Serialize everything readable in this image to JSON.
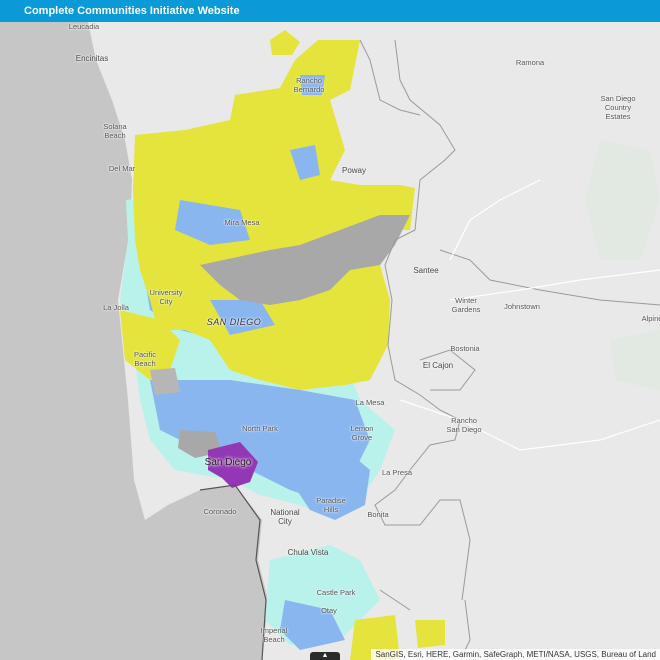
{
  "header": {
    "title": "Complete Communities Initiative Website"
  },
  "map": {
    "attribution": "SanGIS, Esri, HERE, Garmin, SafeGraph, METI/NASA, USGS, Bureau of Land",
    "legend_toggle_icon": "chevron-up-icon",
    "colors": {
      "ocean": "#c6c6c6",
      "land": "#e9e9e9",
      "yellow_zone": "#e4e43c",
      "blue_zone": "#8ab6f0",
      "cyan_zone": "#b8f2ea",
      "gray_zone": "#a8a8a8",
      "purple_zone": "#9437b4",
      "header_bar": "#0a9ad8"
    },
    "places": {
      "leucadia": "Leucadia",
      "encinitas": "Encinitas",
      "ramona": "Ramona",
      "rancho_bernardo": "Rancho\nBernardo",
      "solana_beach": "Solana\nBeach",
      "san_diego_country_estates": "San Diego\nCountry\nEstates",
      "del_mar": "Del Mar",
      "poway": "Poway",
      "mira_mesa": "Mira Mesa",
      "santee": "Santee",
      "university_city": "University\nCity",
      "la_jolla": "La Jolla",
      "winter_gardens": "Winter\nGardens",
      "johnstown": "Johnstown",
      "san_diego_region": "SAN DIEGO",
      "alpine": "Alpine",
      "bostonia": "Bostonia",
      "pacific_beach": "Pacific\nBeach",
      "el_cajon": "El Cajon",
      "la_mesa": "La Mesa",
      "rancho_san_diego": "Rancho\nSan Diego",
      "north_park": "North Park",
      "lemon_grove": "Lemon\nGrove",
      "san_diego": "San Diego",
      "la_presa": "La Presa",
      "paradise_hills": "Paradise\nHills",
      "coronado": "Coronado",
      "bonita": "Bonita",
      "national_city": "National\nCity",
      "chula_vista": "Chula Vista",
      "castle_park": "Castle Park",
      "otay": "Otay",
      "imperial_beach": "Imperial\nBeach"
    }
  }
}
